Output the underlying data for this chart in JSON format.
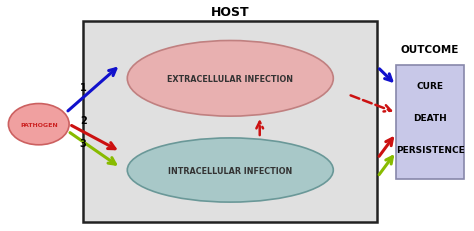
{
  "title_host": "HOST",
  "title_outcome": "OUTCOME",
  "pathogen_label": "PATHOGEN",
  "extracellular_label": "EXTRACELLULAR INFECTION",
  "intracellular_label": "INTRACELLULAR INFECTION",
  "outcome_labels": [
    "CURE",
    "DEATH",
    "PERSISTENCE"
  ],
  "host_box_color": "#e0e0e0",
  "outcome_box_color": "#c8c8e8",
  "outcome_border_color": "#8888aa",
  "extracellular_ellipse_color": "#e8b0b0",
  "extracellular_edge_color": "#c08080",
  "intracellular_ellipse_color": "#a8c8c8",
  "intracellular_edge_color": "#6a9898",
  "pathogen_ellipse_color": "#f0a0a0",
  "pathogen_edge_color": "#cc6060",
  "pathogen_text_color": "#cc2222",
  "arrow_blue": "#1111cc",
  "arrow_red": "#cc1111",
  "arrow_green": "#88bb00",
  "fig_w": 4.74,
  "fig_h": 2.32,
  "dpi": 100
}
